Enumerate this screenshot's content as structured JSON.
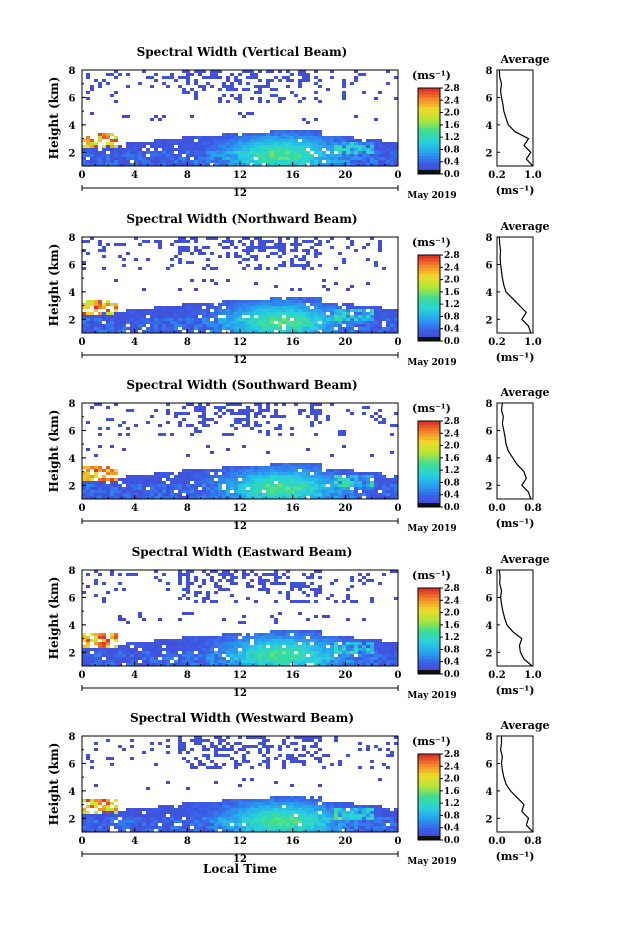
{
  "figure": {
    "date_label": "May 2019",
    "x_axis_title": "Local Time",
    "x_tick_labels": [
      "0",
      "4",
      "8",
      "12",
      "16",
      "20",
      "0"
    ],
    "x_center_label": "12",
    "y_axis_title": "Height (km)",
    "y_tick_labels": [
      "2",
      "4",
      "6",
      "8"
    ],
    "colorbar_unit": "(ms⁻¹)",
    "colorbar_ticks": [
      "0.0",
      "0.4",
      "0.8",
      "1.2",
      "1.6",
      "2.0",
      "2.4",
      "2.8"
    ],
    "profile_title": "Average",
    "profile_unit": "(ms⁻¹)"
  },
  "chart_data": [
    {
      "type": "heatmap",
      "title": "Spectral Width (Vertical Beam)",
      "xlabel": "",
      "ylabel": "Height (km)",
      "xlim": [
        0,
        24
      ],
      "ylim": [
        1,
        8
      ],
      "colorbar": {
        "unit": "(ms-1)",
        "range": [
          0,
          2.8
        ]
      },
      "profile": {
        "title": "Average",
        "xlabel": "(ms-1)",
        "xlim": [
          0.2,
          1.0
        ],
        "ylim": [
          1,
          8
        ],
        "x_tick_labels": [
          "0.2",
          "1.0"
        ],
        "height_km": [
          1.0,
          1.5,
          2.0,
          2.5,
          3.0,
          3.5,
          4.0,
          4.5,
          5.0,
          5.5,
          6.0,
          6.5,
          7.0,
          7.5,
          8.0
        ],
        "width_ms": [
          1.0,
          0.85,
          0.95,
          0.8,
          0.9,
          0.6,
          0.45,
          0.4,
          0.35,
          0.33,
          0.3,
          0.28,
          0.3,
          0.26,
          0.25
        ]
      }
    },
    {
      "type": "heatmap",
      "title": "Spectral Width (Northward Beam)",
      "xlabel": "",
      "ylabel": "Height (km)",
      "xlim": [
        0,
        24
      ],
      "ylim": [
        1,
        8
      ],
      "colorbar": {
        "unit": "(ms-1)",
        "range": [
          0,
          2.8
        ]
      },
      "profile": {
        "title": "Average",
        "xlabel": "(ms-1)",
        "xlim": [
          0.2,
          1.0
        ],
        "ylim": [
          1,
          8
        ],
        "x_tick_labels": [
          "0.2",
          "1.0"
        ],
        "height_km": [
          1.0,
          1.5,
          2.0,
          2.5,
          3.0,
          3.5,
          4.0,
          4.5,
          5.0,
          5.5,
          6.0,
          6.5,
          7.0,
          7.5,
          8.0
        ],
        "width_ms": [
          0.95,
          0.9,
          0.75,
          0.85,
          0.7,
          0.55,
          0.4,
          0.35,
          0.32,
          0.3,
          0.28,
          0.27,
          0.28,
          0.26,
          0.25
        ]
      }
    },
    {
      "type": "heatmap",
      "title": "Spectral Width (Southward Beam)",
      "xlabel": "",
      "ylabel": "Height (km)",
      "xlim": [
        0,
        24
      ],
      "ylim": [
        1,
        8
      ],
      "colorbar": {
        "unit": "(ms-1)",
        "range": [
          0,
          2.8
        ]
      },
      "profile": {
        "title": "Average",
        "xlabel": "(ms-1)",
        "xlim": [
          0.0,
          0.8
        ],
        "ylim": [
          1,
          8
        ],
        "x_tick_labels": [
          "0.0",
          "0.8"
        ],
        "height_km": [
          1.0,
          1.5,
          2.0,
          2.5,
          3.0,
          3.5,
          4.0,
          4.5,
          5.0,
          5.5,
          6.0,
          6.5,
          7.0,
          7.5,
          8.0
        ],
        "width_ms": [
          0.75,
          0.7,
          0.55,
          0.65,
          0.6,
          0.45,
          0.35,
          0.25,
          0.2,
          0.18,
          0.15,
          0.12,
          0.14,
          0.1,
          0.12
        ]
      }
    },
    {
      "type": "heatmap",
      "title": "Spectral Width (Eastward Beam)",
      "xlabel": "",
      "ylabel": "Height (km)",
      "xlim": [
        0,
        24
      ],
      "ylim": [
        1,
        8
      ],
      "colorbar": {
        "unit": "(ms-1)",
        "range": [
          0,
          2.8
        ]
      },
      "profile": {
        "title": "Average",
        "xlabel": "(ms-1)",
        "xlim": [
          0.2,
          1.0
        ],
        "ylim": [
          1,
          8
        ],
        "x_tick_labels": [
          "0.2",
          "1.0"
        ],
        "height_km": [
          1.0,
          1.5,
          2.0,
          2.5,
          3.0,
          3.5,
          4.0,
          4.5,
          5.0,
          5.5,
          6.0,
          6.5,
          7.0,
          7.5,
          8.0
        ],
        "width_ms": [
          0.98,
          0.8,
          0.72,
          0.7,
          0.75,
          0.55,
          0.42,
          0.37,
          0.33,
          0.3,
          0.28,
          0.3,
          0.26,
          0.27,
          0.25
        ]
      }
    },
    {
      "type": "heatmap",
      "title": "Spectral Width (Westward Beam)",
      "xlabel": "Local Time",
      "ylabel": "Height (km)",
      "xlim": [
        0,
        24
      ],
      "ylim": [
        1,
        8
      ],
      "colorbar": {
        "unit": "(ms-1)",
        "range": [
          0,
          2.8
        ]
      },
      "profile": {
        "title": "Average",
        "xlabel": "(ms-1)",
        "xlim": [
          0.0,
          0.8
        ],
        "ylim": [
          1,
          8
        ],
        "x_tick_labels": [
          "0.0",
          "0.8"
        ],
        "height_km": [
          1.0,
          1.5,
          2.0,
          2.5,
          3.0,
          3.5,
          4.0,
          4.5,
          5.0,
          5.5,
          6.0,
          6.5,
          7.0,
          7.5,
          8.0
        ],
        "width_ms": [
          0.8,
          0.65,
          0.7,
          0.55,
          0.6,
          0.45,
          0.3,
          0.2,
          0.15,
          0.12,
          0.1,
          0.12,
          0.08,
          0.1,
          0.1
        ]
      }
    }
  ]
}
